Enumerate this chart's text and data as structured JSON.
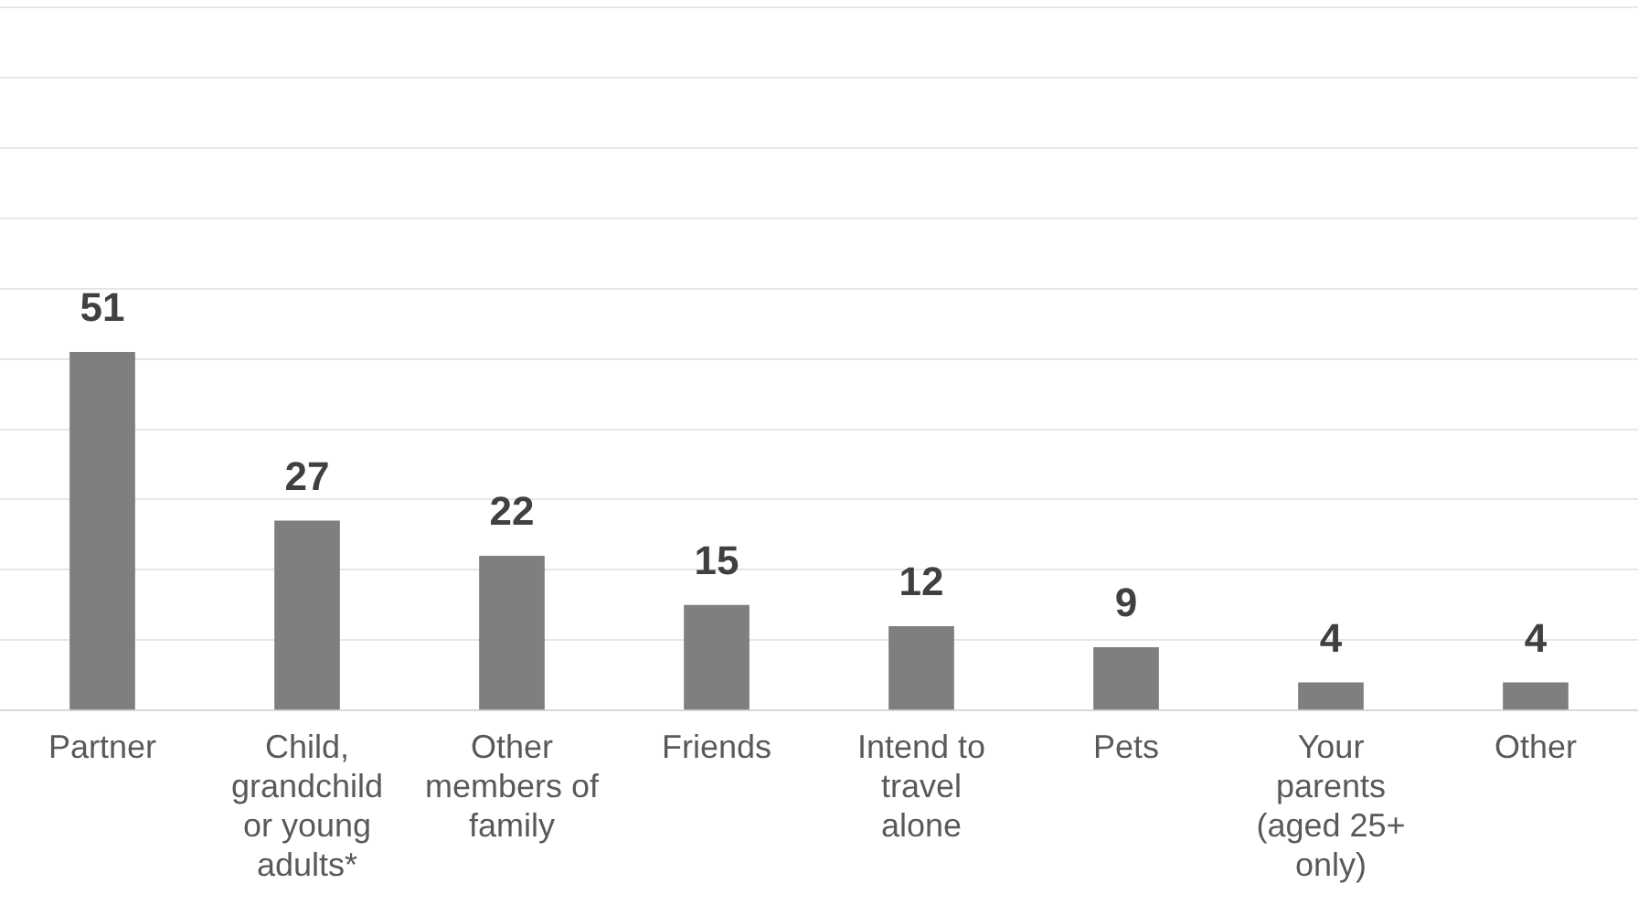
{
  "chart_data": {
    "type": "bar",
    "categories": [
      "Partner",
      "Child, grandchild or young adults*",
      "Other members of family",
      "Friends",
      "Intend to travel alone",
      "Pets",
      "Your parents (aged 25+ only)",
      "Other"
    ],
    "values": [
      51,
      27,
      22,
      15,
      12,
      9,
      4,
      4
    ],
    "color": "#7f7f7f",
    "ylim": [
      0,
      100
    ],
    "yticks": [
      {
        "value": 0,
        "label": null
      },
      {
        "value": 10,
        "label": null
      },
      {
        "value": 20,
        "label": null
      },
      {
        "value": 30,
        "label": null
      },
      {
        "value": 40,
        "label": null
      },
      {
        "value": 50,
        "label": null
      },
      {
        "value": 60,
        "label": null
      },
      {
        "value": 70,
        "label": null
      },
      {
        "value": 80,
        "label": null
      },
      {
        "value": 90,
        "label": null
      },
      {
        "value": 100,
        "label": null
      }
    ],
    "grid": "y",
    "data_labels": true,
    "tick_labels": "x",
    "legend": false
  }
}
